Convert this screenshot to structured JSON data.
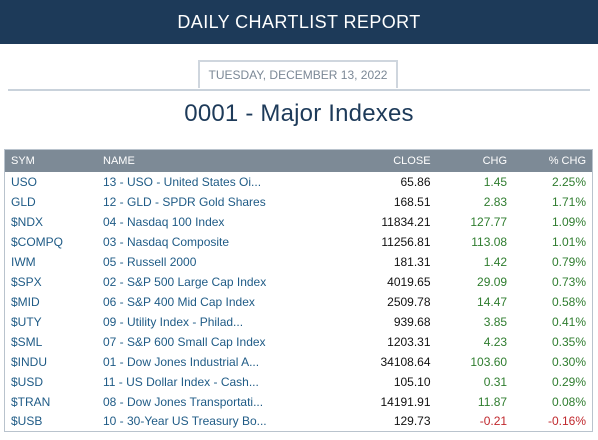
{
  "header": {
    "title": "DAILY CHARTLIST REPORT"
  },
  "report": {
    "date": "TUESDAY, DECEMBER 13, 2022",
    "list_title": "0001 - Major Indexes"
  },
  "table": {
    "columns": [
      "SYM",
      "NAME",
      "CLOSE",
      "CHG",
      "% CHG"
    ],
    "rows": [
      {
        "sym": "USO",
        "name": "13 - USO - United States Oi...",
        "close": "65.86",
        "chg": "1.45",
        "pct": "2.25%"
      },
      {
        "sym": "GLD",
        "name": "12 - GLD - SPDR Gold Shares",
        "close": "168.51",
        "chg": "2.83",
        "pct": "1.71%"
      },
      {
        "sym": "$NDX",
        "name": "04 - Nasdaq 100 Index",
        "close": "11834.21",
        "chg": "127.77",
        "pct": "1.09%"
      },
      {
        "sym": "$COMPQ",
        "name": "03 - Nasdaq Composite",
        "close": "11256.81",
        "chg": "113.08",
        "pct": "1.01%"
      },
      {
        "sym": "IWM",
        "name": "05 - Russell 2000",
        "close": "181.31",
        "chg": "1.42",
        "pct": "0.79%"
      },
      {
        "sym": "$SPX",
        "name": "02 - S&P 500 Large Cap Index",
        "close": "4019.65",
        "chg": "29.09",
        "pct": "0.73%"
      },
      {
        "sym": "$MID",
        "name": "06 - S&P 400 Mid Cap Index",
        "close": "2509.78",
        "chg": "14.47",
        "pct": "0.58%"
      },
      {
        "sym": "$UTY",
        "name": "09 - Utility Index - Philad...",
        "close": "939.68",
        "chg": "3.85",
        "pct": "0.41%"
      },
      {
        "sym": "$SML",
        "name": "07 - S&P 600 Small Cap Index",
        "close": "1203.31",
        "chg": "4.23",
        "pct": "0.35%"
      },
      {
        "sym": "$INDU",
        "name": "01 - Dow Jones Industrial A...",
        "close": "34108.64",
        "chg": "103.60",
        "pct": "0.30%"
      },
      {
        "sym": "$USD",
        "name": "11 - US Dollar Index - Cash...",
        "close": "105.10",
        "chg": "0.31",
        "pct": "0.29%"
      },
      {
        "sym": "$TRAN",
        "name": "08 - Dow Jones Transportati...",
        "close": "14191.91",
        "chg": "11.87",
        "pct": "0.08%"
      },
      {
        "sym": "$USB",
        "name": "10 - 30-Year US Treasury Bo...",
        "close": "129.73",
        "chg": "-0.21",
        "pct": "-0.16%"
      }
    ]
  },
  "colors": {
    "banner": "#1d3a59",
    "header_row": "#7d8a96",
    "link": "#1f5b86",
    "positive": "#2f7d2f",
    "negative": "#c0282d"
  }
}
